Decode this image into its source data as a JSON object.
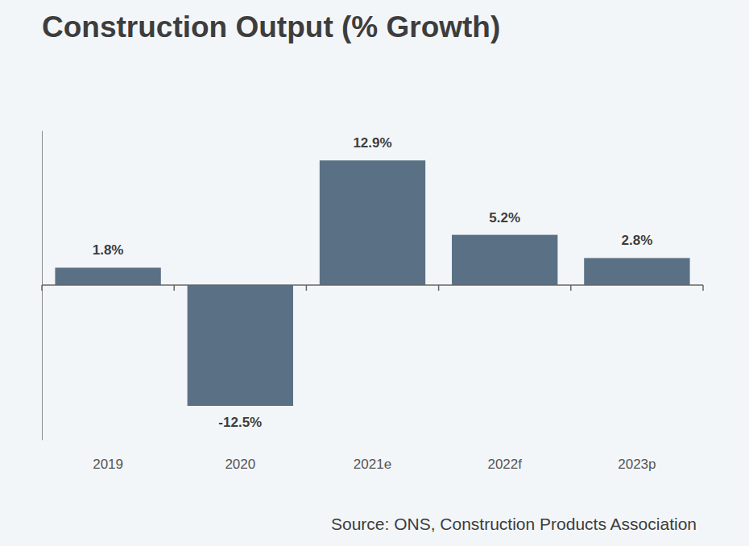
{
  "chart_data": {
    "type": "bar",
    "title": "Construction Output (% Growth)",
    "categories": [
      "2019",
      "2020",
      "2021e",
      "2022f",
      "2023p"
    ],
    "values": [
      1.8,
      -12.5,
      12.9,
      5.2,
      2.8
    ],
    "value_labels": [
      "1.8%",
      "-12.5%",
      "12.9%",
      "5.2%",
      "2.8%"
    ],
    "color": "#5a7185",
    "ylim": [
      -16,
      16
    ],
    "yticks": [],
    "grid": false,
    "data_labels": true,
    "tick_labels": "x",
    "source": "Source: ONS, Construction Products Association"
  }
}
